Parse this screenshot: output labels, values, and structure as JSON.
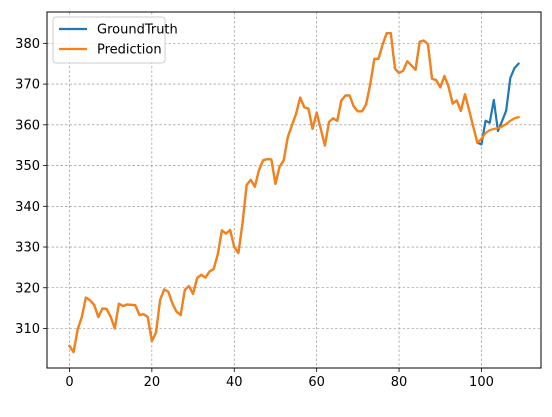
{
  "chart_data": {
    "type": "line",
    "title": "",
    "xlabel": "",
    "ylabel": "",
    "xlim": [
      -5.45,
      114.45
    ],
    "ylim": [
      300.3,
      387.7
    ],
    "x_ticks": [
      0,
      20,
      40,
      60,
      80,
      100
    ],
    "y_ticks": [
      310,
      320,
      330,
      340,
      350,
      360,
      370,
      380
    ],
    "grid": true,
    "legend_position": "top-left",
    "series": [
      {
        "name": "GroundTruth",
        "color": "#1f77b4",
        "values": [
          305.7,
          304.2,
          309.8,
          312.8,
          317.6,
          316.9,
          315.8,
          312.8,
          314.9,
          314.8,
          312.9,
          310.0,
          316.1,
          315.5,
          315.9,
          315.8,
          315.7,
          313.3,
          313.5,
          312.8,
          306.9,
          309.0,
          317.0,
          319.6,
          319.0,
          316.1,
          314.1,
          313.3,
          319.5,
          320.4,
          318.5,
          322.4,
          323.2,
          322.5,
          324.0,
          324.6,
          328.2,
          334.1,
          333.3,
          334.2,
          330.0,
          328.5,
          335.8,
          345.2,
          346.5,
          344.8,
          348.9,
          351.3,
          351.6,
          351.5,
          345.5,
          349.7,
          351.3,
          357.0,
          359.9,
          362.7,
          366.7,
          364.3,
          364.0,
          359.0,
          363.0,
          359.0,
          354.9,
          360.7,
          361.6,
          361.0,
          366.0,
          367.2,
          367.2,
          364.5,
          363.3,
          363.3,
          365.0,
          369.9,
          376.2,
          376.2,
          379.7,
          382.5,
          382.5,
          373.8,
          372.7,
          373.3,
          375.6,
          374.6,
          373.5,
          380.4,
          380.7,
          379.8,
          371.3,
          371.0,
          369.2,
          372.0,
          369.4,
          365.2,
          366.0,
          363.4,
          367.5,
          363.6,
          359.6,
          355.6,
          355.2,
          361.0,
          360.5,
          366.1,
          358.5,
          360.9,
          363.5,
          371.5,
          373.9,
          375.0
        ]
      },
      {
        "name": "Prediction",
        "color": "#ff7f0e",
        "values": [
          305.7,
          304.2,
          309.8,
          312.8,
          317.6,
          316.9,
          315.8,
          312.8,
          314.9,
          314.8,
          312.9,
          310.0,
          316.1,
          315.5,
          315.9,
          315.8,
          315.7,
          313.3,
          313.5,
          312.8,
          306.9,
          309.0,
          317.0,
          319.6,
          319.0,
          316.1,
          314.1,
          313.3,
          319.5,
          320.4,
          318.5,
          322.4,
          323.2,
          322.5,
          324.0,
          324.6,
          328.2,
          334.1,
          333.3,
          334.2,
          330.0,
          328.5,
          335.8,
          345.2,
          346.5,
          344.8,
          348.9,
          351.3,
          351.6,
          351.5,
          345.5,
          349.7,
          351.3,
          357.0,
          359.9,
          362.7,
          366.7,
          364.3,
          364.0,
          359.0,
          363.0,
          359.0,
          354.9,
          360.7,
          361.6,
          361.0,
          366.0,
          367.2,
          367.2,
          364.5,
          363.3,
          363.3,
          365.0,
          369.9,
          376.2,
          376.2,
          379.7,
          382.5,
          382.5,
          373.8,
          372.7,
          373.3,
          375.6,
          374.6,
          373.5,
          380.4,
          380.7,
          379.8,
          371.3,
          371.0,
          369.2,
          372.0,
          369.4,
          365.2,
          366.0,
          363.4,
          367.5,
          363.6,
          359.6,
          355.6,
          356.6,
          358.0,
          358.7,
          359.0,
          359.2,
          359.6,
          360.2,
          361.0,
          361.6,
          361.9
        ]
      }
    ]
  }
}
